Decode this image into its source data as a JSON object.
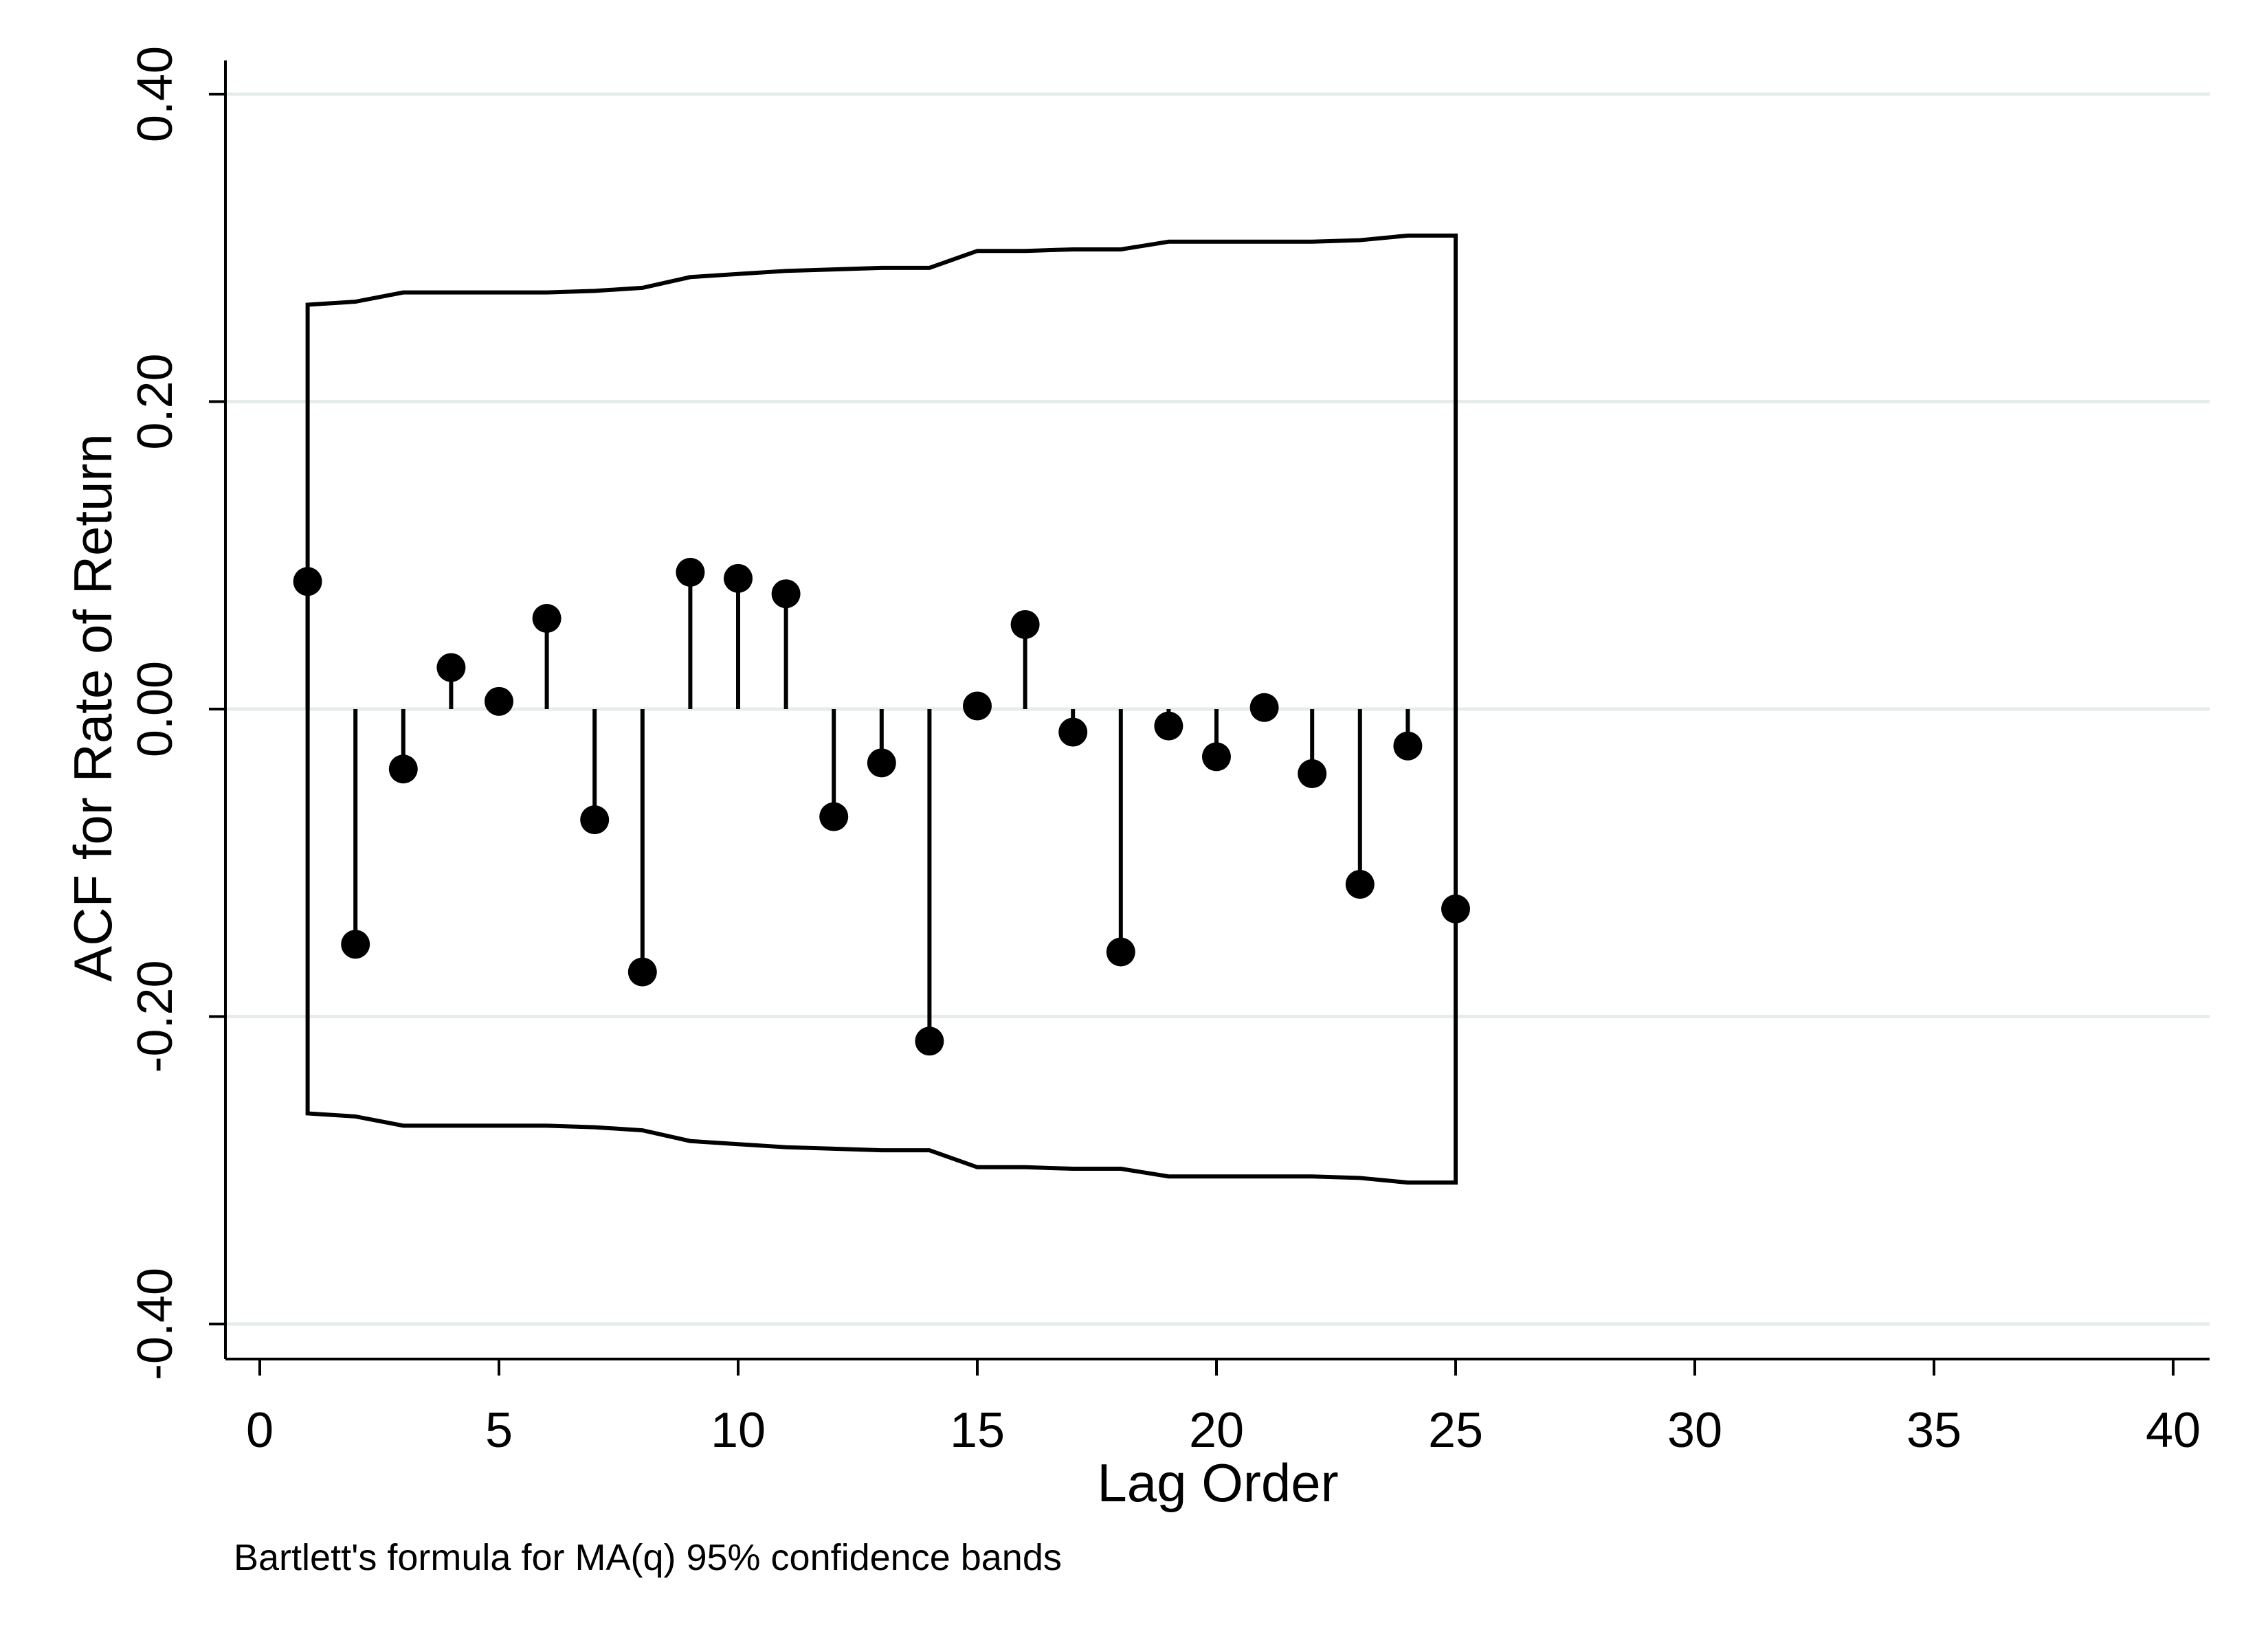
{
  "chart_data": {
    "type": "scatter",
    "subtype": "acf-stem",
    "xlabel": "Lag Order",
    "ylabel": "ACF for Rate of Return",
    "note": "Bartlett's formula for MA(q) 95% confidence bands",
    "xlim": [
      0,
      40
    ],
    "ylim": [
      -0.4,
      0.4
    ],
    "x_ticks": [
      0,
      5,
      10,
      15,
      20,
      25,
      30,
      35,
      40
    ],
    "x_tick_labels": [
      "0",
      "5",
      "10",
      "15",
      "20",
      "25",
      "30",
      "35",
      "40"
    ],
    "y_ticks": [
      -0.4,
      -0.2,
      0.0,
      0.2,
      0.4
    ],
    "y_tick_labels": [
      "-0.40",
      "-0.20",
      "0.00",
      "0.20",
      "0.40"
    ],
    "grid": true,
    "acf": {
      "lags": [
        1,
        2,
        3,
        4,
        5,
        6,
        7,
        8,
        9,
        10,
        11,
        12,
        13,
        14,
        15,
        16,
        17,
        18,
        19,
        20,
        21,
        22,
        23,
        24,
        25
      ],
      "values": [
        0.083,
        -0.153,
        -0.039,
        0.027,
        0.005,
        0.059,
        -0.072,
        -0.171,
        0.089,
        0.085,
        0.075,
        -0.07,
        -0.035,
        -0.216,
        0.002,
        0.055,
        -0.015,
        -0.158,
        -0.011,
        -0.031,
        0.001,
        -0.042,
        -0.114,
        -0.024,
        -0.13
      ]
    },
    "confidence_band": {
      "lags": [
        1,
        2,
        3,
        4,
        5,
        6,
        7,
        8,
        9,
        10,
        11,
        12,
        13,
        14,
        15,
        16,
        17,
        18,
        19,
        20,
        21,
        22,
        23,
        24,
        25
      ],
      "upper": [
        0.263,
        0.265,
        0.271,
        0.271,
        0.271,
        0.271,
        0.272,
        0.274,
        0.281,
        0.283,
        0.285,
        0.286,
        0.287,
        0.287,
        0.298,
        0.298,
        0.299,
        0.299,
        0.304,
        0.304,
        0.304,
        0.304,
        0.305,
        0.308,
        0.308
      ]
    },
    "colors": {
      "marks": "#000000",
      "grid": "#e6ecea",
      "background": "#ffffff"
    }
  }
}
